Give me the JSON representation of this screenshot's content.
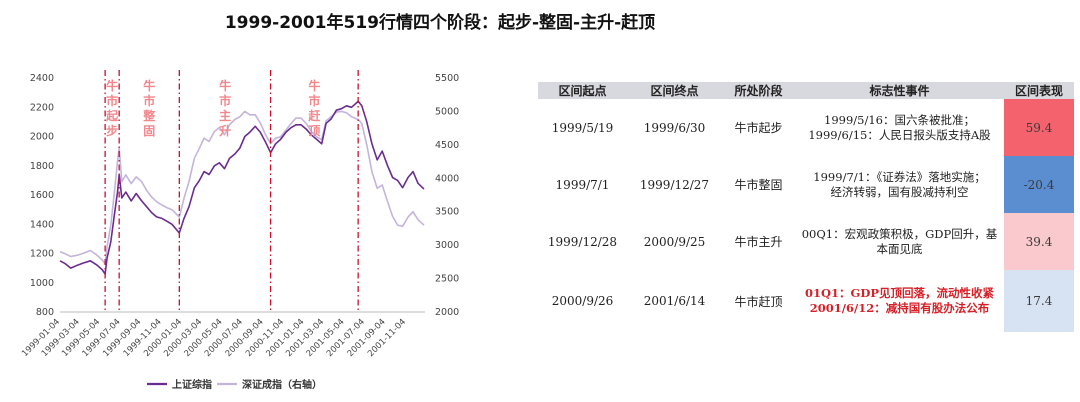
{
  "title": "1999-2001年519行情四个阶段：起步-整固-主升-赶顶",
  "chart_data": {
    "type": "line",
    "left_axis": {
      "ticks": [
        800,
        1000,
        1200,
        1400,
        1600,
        1800,
        2000,
        2200,
        2400
      ],
      "ylim": [
        800,
        2400
      ]
    },
    "right_axis": {
      "ticks": [
        2000,
        2500,
        3000,
        3500,
        4000,
        4500,
        5000,
        5500
      ],
      "ylim": [
        2000,
        5500
      ],
      "label": "右轴"
    },
    "x_ticks": [
      "1999-01-04",
      "1999-03-04",
      "1999-05-04",
      "1999-07-04",
      "1999-09-04",
      "1999-11-04",
      "2000-01-04",
      "2000-03-04",
      "2000-05-04",
      "2000-07-04",
      "2000-09-04",
      "2000-11-04",
      "2001-01-04",
      "2001-03-04",
      "2001-05-04",
      "2001-07-04",
      "2001-09-04",
      "2001-11-04"
    ],
    "x_range": [
      "1999-01-04",
      "2001-12-31"
    ],
    "grid": false,
    "legend_position": "bottom",
    "series": [
      {
        "name": "上证综指",
        "axis": "left",
        "color": "#6b2c91",
        "points": [
          [
            "1999-01-04",
            1150
          ],
          [
            "1999-01-20",
            1130
          ],
          [
            "1999-02-05",
            1100
          ],
          [
            "1999-02-25",
            1120
          ],
          [
            "1999-03-15",
            1135
          ],
          [
            "1999-04-05",
            1150
          ],
          [
            "1999-04-25",
            1120
          ],
          [
            "1999-05-10",
            1090
          ],
          [
            "1999-05-19",
            1060
          ],
          [
            "1999-05-25",
            1170
          ],
          [
            "1999-06-05",
            1280
          ],
          [
            "1999-06-15",
            1450
          ],
          [
            "1999-06-25",
            1620
          ],
          [
            "1999-06-30",
            1740
          ],
          [
            "1999-07-08",
            1580
          ],
          [
            "1999-07-20",
            1620
          ],
          [
            "1999-08-05",
            1560
          ],
          [
            "1999-08-20",
            1610
          ],
          [
            "1999-09-05",
            1560
          ],
          [
            "1999-09-20",
            1520
          ],
          [
            "1999-10-05",
            1480
          ],
          [
            "1999-10-20",
            1450
          ],
          [
            "1999-11-05",
            1440
          ],
          [
            "1999-11-20",
            1420
          ],
          [
            "1999-12-05",
            1400
          ],
          [
            "1999-12-27",
            1340
          ],
          [
            "2000-01-10",
            1440
          ],
          [
            "2000-01-25",
            1520
          ],
          [
            "2000-02-10",
            1650
          ],
          [
            "2000-02-25",
            1700
          ],
          [
            "2000-03-10",
            1760
          ],
          [
            "2000-03-25",
            1740
          ],
          [
            "2000-04-10",
            1800
          ],
          [
            "2000-04-25",
            1820
          ],
          [
            "2000-05-10",
            1780
          ],
          [
            "2000-05-25",
            1850
          ],
          [
            "2000-06-10",
            1880
          ],
          [
            "2000-06-25",
            1920
          ],
          [
            "2000-07-10",
            2000
          ],
          [
            "2000-07-25",
            2030
          ],
          [
            "2000-08-10",
            2070
          ],
          [
            "2000-08-25",
            2030
          ],
          [
            "2000-09-10",
            1960
          ],
          [
            "2000-09-25",
            1890
          ],
          [
            "2000-10-10",
            1950
          ],
          [
            "2000-10-25",
            1980
          ],
          [
            "2000-11-10",
            2030
          ],
          [
            "2000-11-25",
            2060
          ],
          [
            "2000-12-10",
            2080
          ],
          [
            "2000-12-25",
            2080
          ],
          [
            "2001-01-10",
            2050
          ],
          [
            "2001-01-25",
            2010
          ],
          [
            "2001-02-10",
            1980
          ],
          [
            "2001-02-25",
            1950
          ],
          [
            "2001-03-10",
            2090
          ],
          [
            "2001-03-25",
            2120
          ],
          [
            "2001-04-10",
            2180
          ],
          [
            "2001-04-25",
            2190
          ],
          [
            "2001-05-10",
            2210
          ],
          [
            "2001-05-25",
            2200
          ],
          [
            "2001-06-14",
            2240
          ],
          [
            "2001-06-25",
            2210
          ],
          [
            "2001-07-10",
            2100
          ],
          [
            "2001-07-25",
            1950
          ],
          [
            "2001-08-10",
            1840
          ],
          [
            "2001-08-25",
            1900
          ],
          [
            "2001-09-10",
            1800
          ],
          [
            "2001-09-25",
            1720
          ],
          [
            "2001-10-10",
            1700
          ],
          [
            "2001-10-25",
            1650
          ],
          [
            "2001-11-10",
            1720
          ],
          [
            "2001-11-25",
            1760
          ],
          [
            "2001-12-10",
            1680
          ],
          [
            "2001-12-28",
            1640
          ]
        ]
      },
      {
        "name": "深证成指",
        "axis": "right",
        "color": "#c4b4dc",
        "points": [
          [
            "1999-01-04",
            2900
          ],
          [
            "1999-01-20",
            2870
          ],
          [
            "1999-02-05",
            2830
          ],
          [
            "1999-02-25",
            2850
          ],
          [
            "1999-03-15",
            2880
          ],
          [
            "1999-04-05",
            2920
          ],
          [
            "1999-04-25",
            2850
          ],
          [
            "1999-05-10",
            2780
          ],
          [
            "1999-05-19",
            2720
          ],
          [
            "1999-05-25",
            2980
          ],
          [
            "1999-06-05",
            3300
          ],
          [
            "1999-06-15",
            3750
          ],
          [
            "1999-06-25",
            4250
          ],
          [
            "1999-06-30",
            4450
          ],
          [
            "1999-07-08",
            3950
          ],
          [
            "1999-07-20",
            4050
          ],
          [
            "1999-08-05",
            3920
          ],
          [
            "1999-08-20",
            4020
          ],
          [
            "1999-09-05",
            3950
          ],
          [
            "1999-09-20",
            3820
          ],
          [
            "1999-10-05",
            3720
          ],
          [
            "1999-10-20",
            3650
          ],
          [
            "1999-11-05",
            3600
          ],
          [
            "1999-11-20",
            3560
          ],
          [
            "1999-12-05",
            3530
          ],
          [
            "1999-12-27",
            3420
          ],
          [
            "2000-01-10",
            3700
          ],
          [
            "2000-01-25",
            3950
          ],
          [
            "2000-02-10",
            4300
          ],
          [
            "2000-02-25",
            4450
          ],
          [
            "2000-03-10",
            4600
          ],
          [
            "2000-03-25",
            4550
          ],
          [
            "2000-04-10",
            4700
          ],
          [
            "2000-04-25",
            4760
          ],
          [
            "2000-05-10",
            4650
          ],
          [
            "2000-05-25",
            4800
          ],
          [
            "2000-06-10",
            4880
          ],
          [
            "2000-06-25",
            4920
          ],
          [
            "2000-07-10",
            5000
          ],
          [
            "2000-07-25",
            4950
          ],
          [
            "2000-08-10",
            4950
          ],
          [
            "2000-08-25",
            4830
          ],
          [
            "2000-09-10",
            4650
          ],
          [
            "2000-09-25",
            4520
          ],
          [
            "2000-10-10",
            4600
          ],
          [
            "2000-10-25",
            4620
          ],
          [
            "2000-11-10",
            4720
          ],
          [
            "2000-11-25",
            4820
          ],
          [
            "2000-12-10",
            4900
          ],
          [
            "2000-12-25",
            4900
          ],
          [
            "2001-01-10",
            4820
          ],
          [
            "2001-01-25",
            4700
          ],
          [
            "2001-02-10",
            4620
          ],
          [
            "2001-02-25",
            4580
          ],
          [
            "2001-03-10",
            4860
          ],
          [
            "2001-03-25",
            4920
          ],
          [
            "2001-04-10",
            4990
          ],
          [
            "2001-04-25",
            5000
          ],
          [
            "2001-05-10",
            4980
          ],
          [
            "2001-05-25",
            4920
          ],
          [
            "2001-06-14",
            4880
          ],
          [
            "2001-06-25",
            4820
          ],
          [
            "2001-07-10",
            4500
          ],
          [
            "2001-07-25",
            4100
          ],
          [
            "2001-08-10",
            3850
          ],
          [
            "2001-08-25",
            3900
          ],
          [
            "2001-09-10",
            3650
          ],
          [
            "2001-09-25",
            3430
          ],
          [
            "2001-10-10",
            3300
          ],
          [
            "2001-10-25",
            3280
          ],
          [
            "2001-11-10",
            3420
          ],
          [
            "2001-11-25",
            3500
          ],
          [
            "2001-12-10",
            3380
          ],
          [
            "2001-12-28",
            3300
          ]
        ]
      }
    ],
    "phase_lines": [
      "1999-05-19",
      "1999-06-30",
      "1999-12-27",
      "2000-09-25",
      "2001-06-14"
    ],
    "phase_labels": [
      {
        "date": "1999-06-09",
        "text": "牛市起步"
      },
      {
        "date": "1999-09-28",
        "text": "牛市整固"
      },
      {
        "date": "2000-05-12",
        "text": "牛市主升"
      },
      {
        "date": "2001-02-03",
        "text": "牛市赶顶"
      }
    ],
    "phase_label_color": "#f2878c",
    "phase_line_color": "#c8102e"
  },
  "table": {
    "headers": [
      "区间起点",
      "区间终点",
      "所处阶段",
      "标志性事件",
      "区间表现"
    ],
    "rows": [
      {
        "start": "1999/5/19",
        "end": "1999/6/30",
        "stage": "牛市起步",
        "event": [
          "1999/5/16：国六条被批准；",
          "1999/6/15：人民日报头版支持A股"
        ],
        "event_red": false,
        "perf": "59.4",
        "perf_color": "#f4636d"
      },
      {
        "start": "1999/7/1",
        "end": "1999/12/27",
        "stage": "牛市整固",
        "event": [
          "1999/7/1：《证券法》落地实施；",
          "经济转弱，国有股减持利空"
        ],
        "event_red": false,
        "perf": "-20.4",
        "perf_color": "#5b8ed0"
      },
      {
        "start": "1999/12/28",
        "end": "2000/9/25",
        "stage": "牛市主升",
        "event": [
          "00Q1：宏观政策积极，GDP回升，基",
          "本面见底"
        ],
        "event_red": false,
        "perf": "39.4",
        "perf_color": "#f9c9cd"
      },
      {
        "start": "2000/9/26",
        "end": "2001/6/14",
        "stage": "牛市赶顶",
        "event": [
          "01Q1：GDP见顶回落，流动性收紧",
          "2001/6/12：减持国有股办法公布"
        ],
        "event_red": true,
        "perf": "17.4",
        "perf_color": "#d7e3f2"
      }
    ]
  }
}
